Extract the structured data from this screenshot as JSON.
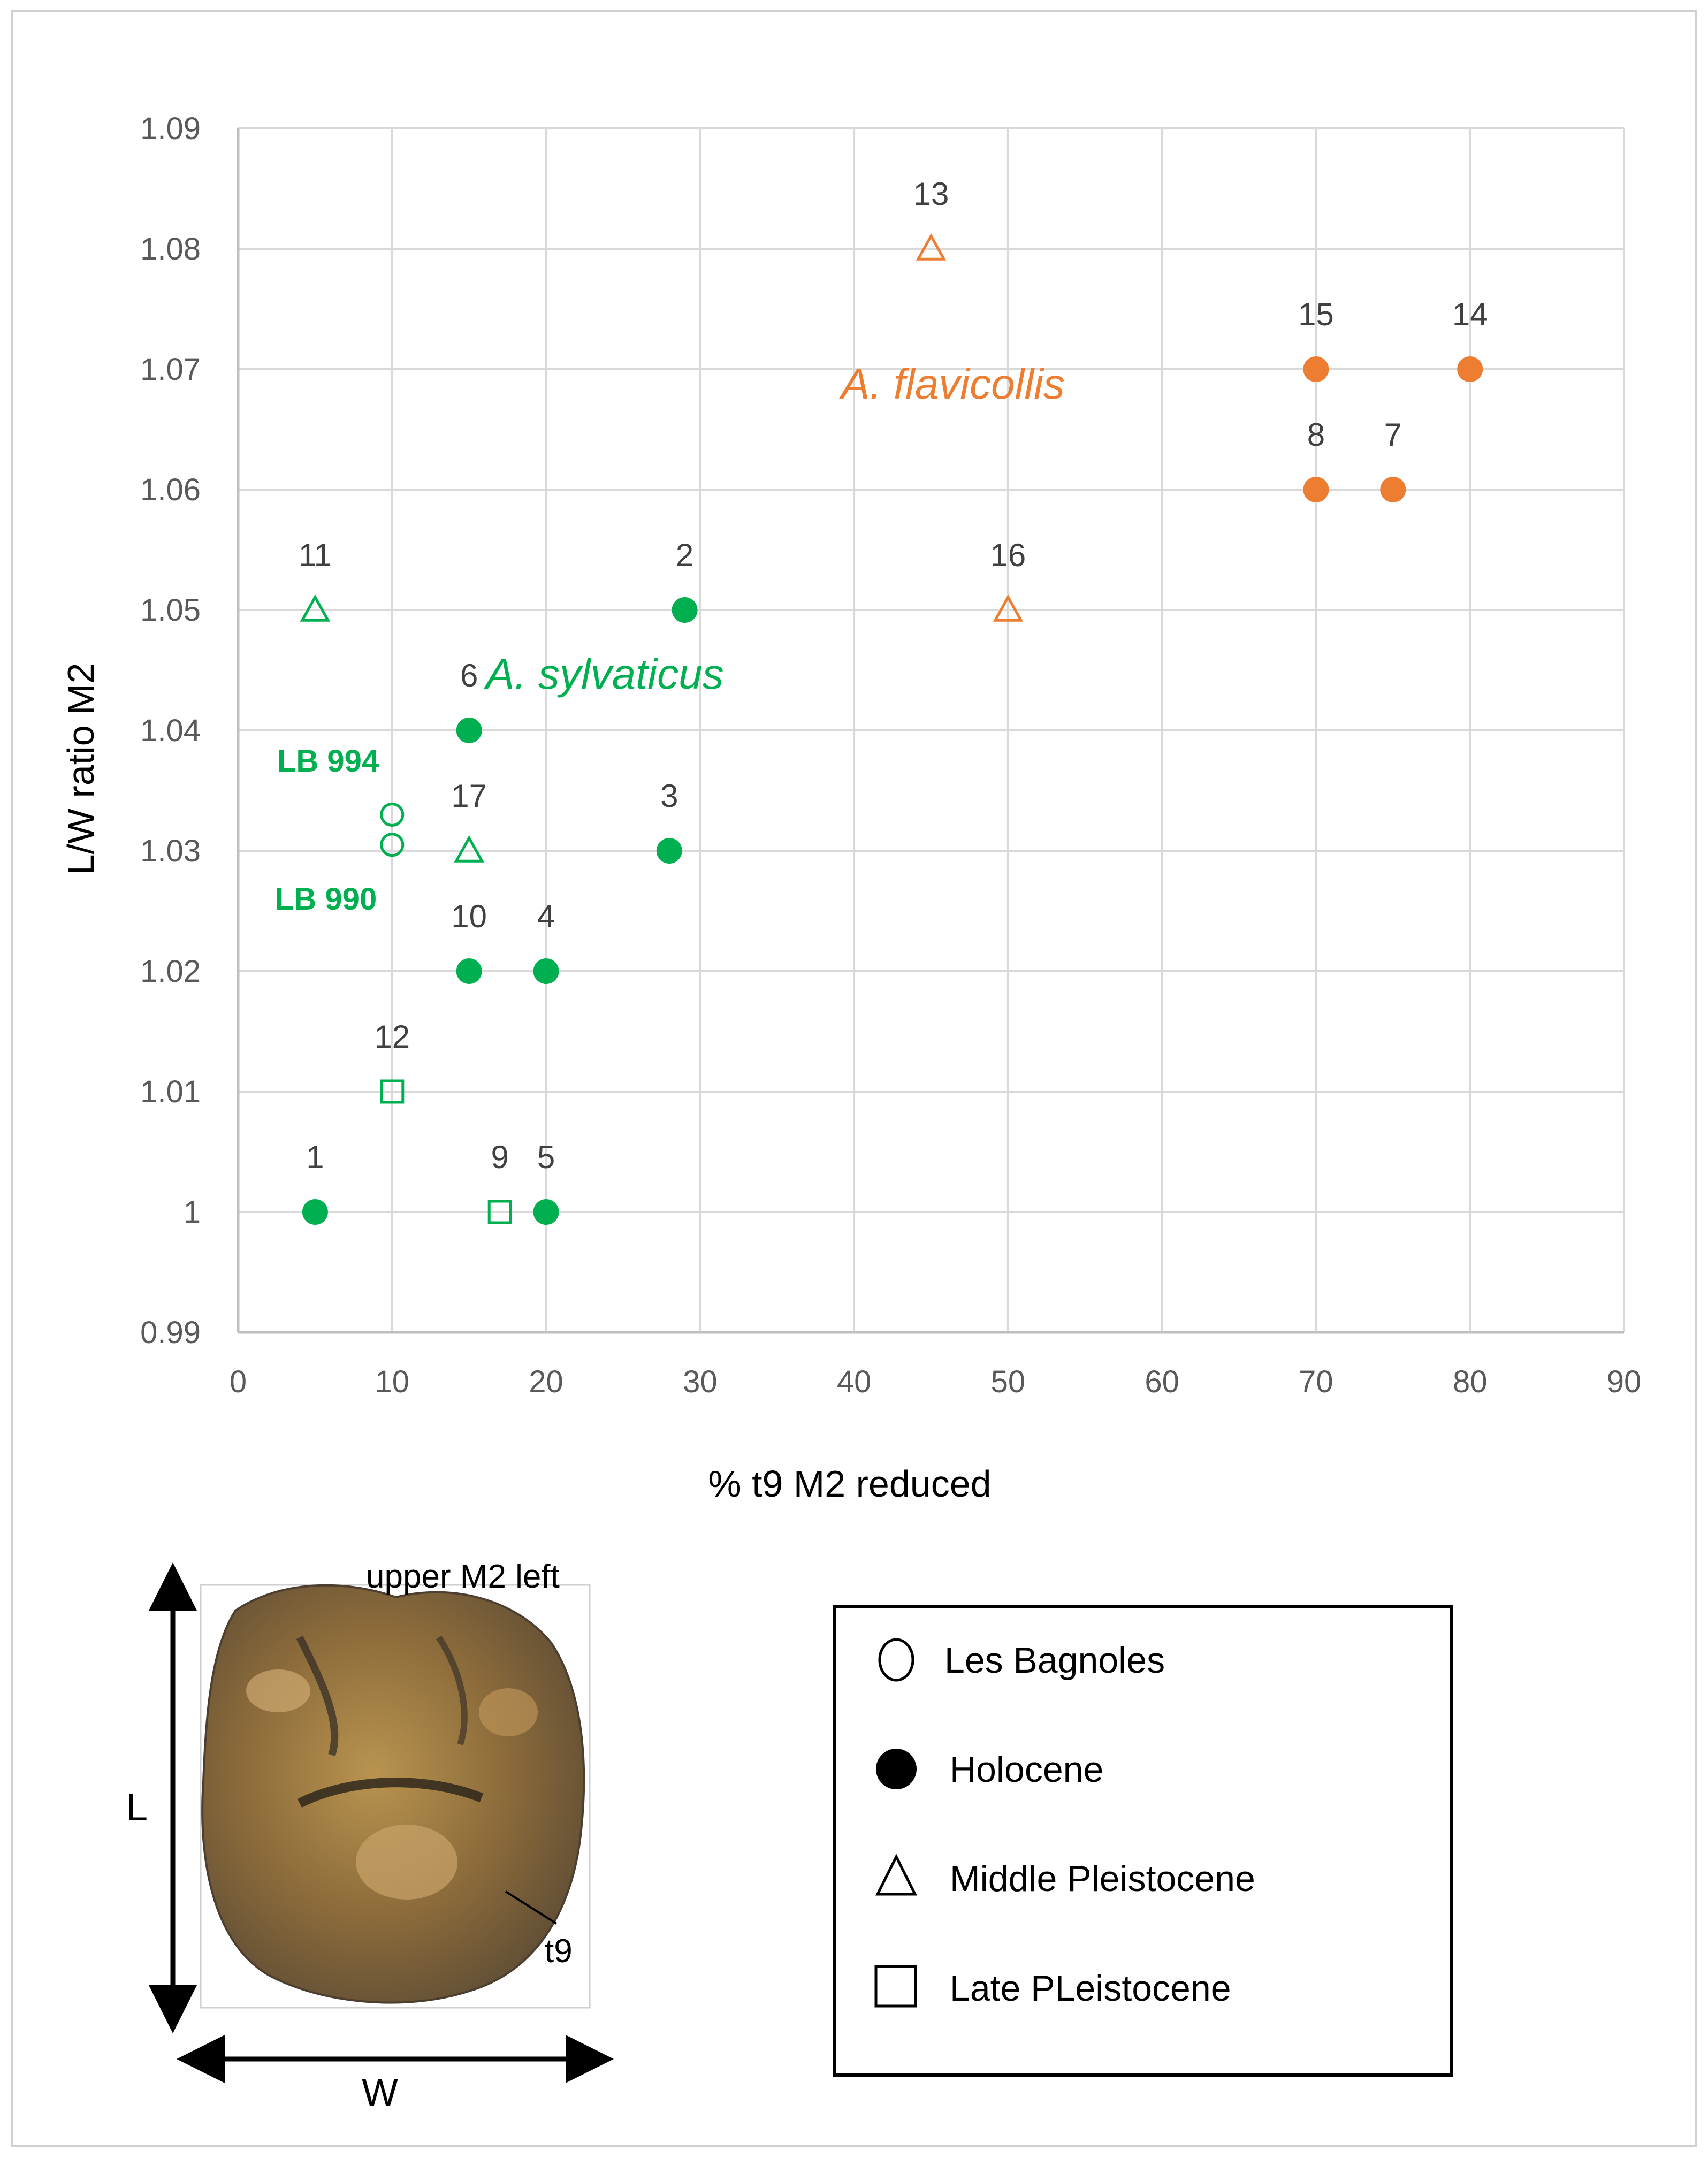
{
  "colors": {
    "sylvaticus": "#00b050",
    "flavicollis": "#ed7d31",
    "grid": "#d9d9d9"
  },
  "chart_data": {
    "type": "scatter",
    "xlabel": "% t9 M2 reduced",
    "ylabel": "L/W ratio M2",
    "xlim": [
      0,
      90
    ],
    "ylim": [
      0.99,
      1.09
    ],
    "x_ticks": [
      "0",
      "10",
      "20",
      "30",
      "40",
      "50",
      "60",
      "70",
      "80",
      "90"
    ],
    "y_ticks": [
      "0.99",
      "1",
      "1.01",
      "1.02",
      "1.03",
      "1.04",
      "1.05",
      "1.06",
      "1.07",
      "1.08",
      "1.09"
    ],
    "grid": true,
    "points": [
      {
        "label": "1",
        "x": 5,
        "y": 1.0,
        "marker": "circle-filled",
        "group": "sylvaticus"
      },
      {
        "label": "2",
        "x": 29,
        "y": 1.05,
        "marker": "circle-filled",
        "group": "sylvaticus"
      },
      {
        "label": "3",
        "x": 28,
        "y": 1.03,
        "marker": "circle-filled",
        "group": "sylvaticus"
      },
      {
        "label": "4",
        "x": 20,
        "y": 1.02,
        "marker": "circle-filled",
        "group": "sylvaticus"
      },
      {
        "label": "5",
        "x": 20,
        "y": 1.0,
        "marker": "circle-filled",
        "group": "sylvaticus"
      },
      {
        "label": "6",
        "x": 15,
        "y": 1.04,
        "marker": "circle-filled",
        "group": "sylvaticus"
      },
      {
        "label": "9",
        "x": 17,
        "y": 1.0,
        "marker": "square-open",
        "group": "sylvaticus"
      },
      {
        "label": "10",
        "x": 15,
        "y": 1.02,
        "marker": "circle-filled",
        "group": "sylvaticus"
      },
      {
        "label": "11",
        "x": 5,
        "y": 1.05,
        "marker": "triangle-open",
        "group": "sylvaticus"
      },
      {
        "label": "12",
        "x": 10,
        "y": 1.01,
        "marker": "square-open",
        "group": "sylvaticus"
      },
      {
        "label": "17",
        "x": 15,
        "y": 1.03,
        "marker": "triangle-open",
        "group": "sylvaticus"
      },
      {
        "label": "",
        "x": 10,
        "y": 1.033,
        "marker": "circle-open",
        "group": "sylvaticus"
      },
      {
        "label": "",
        "x": 10,
        "y": 1.0305,
        "marker": "circle-open",
        "group": "sylvaticus"
      },
      {
        "label": "7",
        "x": 75,
        "y": 1.06,
        "marker": "circle-filled",
        "group": "flavicollis"
      },
      {
        "label": "8",
        "x": 70,
        "y": 1.06,
        "marker": "circle-filled",
        "group": "flavicollis"
      },
      {
        "label": "13",
        "x": 45,
        "y": 1.08,
        "marker": "triangle-open",
        "group": "flavicollis"
      },
      {
        "label": "14",
        "x": 80,
        "y": 1.07,
        "marker": "circle-filled",
        "group": "flavicollis"
      },
      {
        "label": "15",
        "x": 70,
        "y": 1.07,
        "marker": "circle-filled",
        "group": "flavicollis"
      },
      {
        "label": "16",
        "x": 50,
        "y": 1.05,
        "marker": "triangle-open",
        "group": "flavicollis"
      }
    ],
    "annotations": {
      "sylvaticus": "A. sylvaticus",
      "flavicollis": "A. flavicollis",
      "lb994": "LB 994",
      "lb990": "LB 990"
    }
  },
  "figure": {
    "tooth_caption": "upper M2 left",
    "length_label": "L",
    "width_label": "W",
    "cusp_label": "t9"
  },
  "legend": {
    "items": [
      {
        "label": "Les Bagnoles",
        "marker": "circle-open"
      },
      {
        "label": "Holocene",
        "marker": "circle-filled"
      },
      {
        "label": "Middle Pleistocene",
        "marker": "triangle-open"
      },
      {
        "label": "Late PLeistocene",
        "marker": "square-open"
      }
    ]
  }
}
